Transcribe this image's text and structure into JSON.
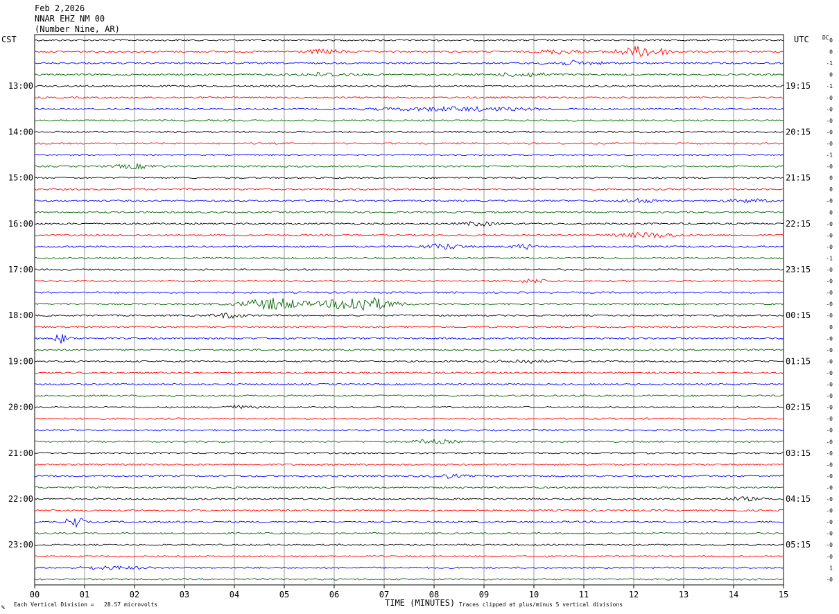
{
  "header": {
    "date": "Feb 2,2026",
    "station": "NNAR EHZ NM 00",
    "location": "(Number Nine, AR)"
  },
  "corner_left": "CST",
  "corner_right": "UTC",
  "corner_dc": "DC",
  "footer": {
    "scale": "Each Vertical Division =   28.57 microvolts",
    "clip": "Traces clipped at plus/minus 5 vertical divisions",
    "mark": "%"
  },
  "colors": {
    "cycle": [
      "#000000",
      "#ff0000",
      "#0000ff",
      "#006400"
    ],
    "grid": "#000000"
  },
  "chart_data": {
    "type": "line",
    "xlabel": "TIME (MINUTES)",
    "xlim": [
      0,
      15
    ],
    "x_ticks": [
      "00",
      "01",
      "02",
      "03",
      "04",
      "05",
      "06",
      "07",
      "08",
      "09",
      "10",
      "11",
      "12",
      "13",
      "14",
      "15"
    ],
    "left_hour_labels": [
      "13:00",
      "14:00",
      "15:00",
      "16:00",
      "17:00",
      "18:00",
      "19:00",
      "20:00",
      "21:00",
      "22:00",
      "23:00"
    ],
    "right_hour_labels": [
      "19:15",
      "20:15",
      "21:15",
      "22:15",
      "23:15",
      "00:15",
      "01:15",
      "02:15",
      "03:15",
      "04:15",
      "05:15"
    ],
    "row_count": 48,
    "first_labeled_row": 4,
    "rows_per_hour": 4,
    "dc_offsets": [
      "0",
      "0",
      "-1",
      "0",
      "-1",
      "-0",
      "-0",
      "-0",
      "-0",
      "-0",
      "-1",
      "-0",
      "0",
      "0",
      "-0",
      "0",
      "-0",
      "-0",
      "-0",
      "-1",
      "-0",
      "-0",
      "-0",
      "-0",
      "-0",
      "0",
      "-0",
      "-0",
      "-0",
      "-0",
      "-0",
      "-0",
      "-0",
      "-0",
      "-0",
      "-0",
      "-0",
      "-0",
      "-0",
      "-0",
      "-0",
      "-0",
      "-0",
      "-0",
      "-0",
      "-0",
      "1",
      "-0"
    ],
    "events": [
      {
        "row": 1,
        "minute": 5.8,
        "amp": 0.35,
        "width": 0.4
      },
      {
        "row": 1,
        "minute": 10.5,
        "amp": 0.35,
        "width": 0.4
      },
      {
        "row": 1,
        "minute": 12.2,
        "amp": 0.9,
        "width": 0.5
      },
      {
        "row": 2,
        "minute": 10.8,
        "amp": 0.3,
        "width": 0.6
      },
      {
        "row": 3,
        "minute": 5.8,
        "amp": 0.3,
        "width": 0.6
      },
      {
        "row": 3,
        "minute": 9.8,
        "amp": 0.35,
        "width": 0.5
      },
      {
        "row": 6,
        "minute": 8.5,
        "amp": 0.3,
        "width": 1.5
      },
      {
        "row": 11,
        "minute": 2.0,
        "amp": 0.35,
        "width": 0.4
      },
      {
        "row": 14,
        "minute": 14.3,
        "amp": 0.3,
        "width": 0.4
      },
      {
        "row": 14,
        "minute": 12.1,
        "amp": 0.35,
        "width": 0.3
      },
      {
        "row": 16,
        "minute": 8.9,
        "amp": 0.35,
        "width": 0.3
      },
      {
        "row": 17,
        "minute": 12.3,
        "amp": 0.4,
        "width": 0.6
      },
      {
        "row": 18,
        "minute": 8.2,
        "amp": 0.45,
        "width": 0.4
      },
      {
        "row": 18,
        "minute": 9.8,
        "amp": 0.45,
        "width": 0.2
      },
      {
        "row": 21,
        "minute": 10.0,
        "amp": 0.3,
        "width": 0.3
      },
      {
        "row": 23,
        "minute": 4.8,
        "amp": 1.0,
        "width": 0.6
      },
      {
        "row": 23,
        "minute": 6.5,
        "amp": 1.4,
        "width": 0.6
      },
      {
        "row": 24,
        "minute": 3.9,
        "amp": 0.4,
        "width": 0.3
      },
      {
        "row": 26,
        "minute": 0.55,
        "amp": 0.8,
        "width": 0.15
      },
      {
        "row": 28,
        "minute": 9.8,
        "amp": 0.3,
        "width": 0.4
      },
      {
        "row": 32,
        "minute": 4.0,
        "amp": 0.3,
        "width": 0.3
      },
      {
        "row": 35,
        "minute": 8.0,
        "amp": 0.3,
        "width": 0.4
      },
      {
        "row": 38,
        "minute": 8.3,
        "amp": 0.3,
        "width": 0.3
      },
      {
        "row": 40,
        "minute": 14.2,
        "amp": 0.3,
        "width": 0.3
      },
      {
        "row": 42,
        "minute": 0.8,
        "amp": 1.2,
        "width": 0.15
      },
      {
        "row": 46,
        "minute": 1.5,
        "amp": 0.25,
        "width": 0.6
      }
    ]
  }
}
